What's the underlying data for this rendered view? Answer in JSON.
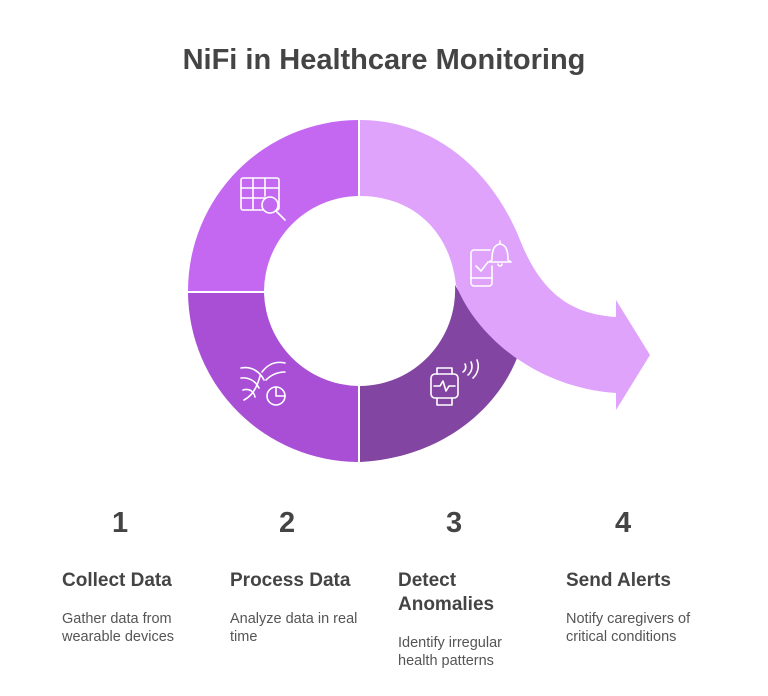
{
  "title": "NiFi in Healthcare Monitoring",
  "colors": {
    "collect": "#c468f2",
    "process": "#a94fd5",
    "detect": "#8345a2",
    "alert": "#dfa3fb",
    "icon_stroke": "#ffffff"
  },
  "steps": [
    {
      "number": "1",
      "title": "Collect Data",
      "description": "Gather data from wearable devices",
      "icon": "table-search-icon"
    },
    {
      "number": "2",
      "title": "Process Data",
      "description": "Analyze data in real time",
      "icon": "flow-chart-icon"
    },
    {
      "number": "3",
      "title": "Detect Anomalies",
      "description": "Identify irregular health patterns",
      "icon": "smartwatch-icon"
    },
    {
      "number": "4",
      "title": "Send Alerts",
      "description": "Notify caregivers of critical conditions",
      "icon": "phone-bell-icon"
    }
  ]
}
